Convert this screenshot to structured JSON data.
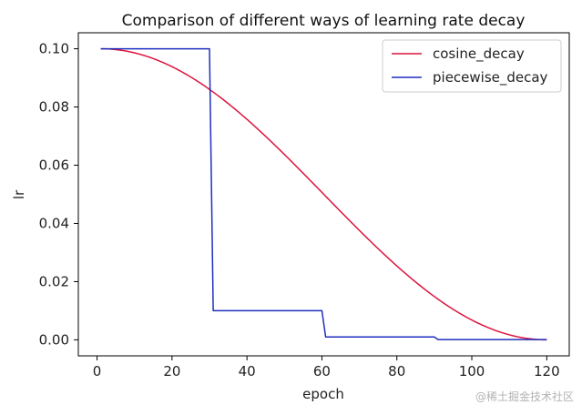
{
  "chart_data": {
    "type": "line",
    "title": "Comparison of different ways of learning rate decay",
    "xlabel": "epoch",
    "ylabel": "lr",
    "xlim": [
      -5,
      126
    ],
    "ylim": [
      -0.0055,
      0.1055
    ],
    "xticks": [
      0,
      20,
      40,
      60,
      80,
      100,
      120
    ],
    "yticks": [
      0.0,
      0.02,
      0.04,
      0.06,
      0.08,
      0.1
    ],
    "ytick_labels": [
      "0.00",
      "0.02",
      "0.04",
      "0.06",
      "0.08",
      "0.10"
    ],
    "grid": false,
    "legend_position": "top-right",
    "series": [
      {
        "name": "cosine_decay",
        "color": "#dc143c",
        "function": "cosine",
        "x_start": 1,
        "x_end": 120,
        "lr_max": 0.1,
        "lr_min": 0.0
      },
      {
        "name": "piecewise_decay",
        "color": "#1f2fbf",
        "function": "steps",
        "points": [
          [
            1,
            0.1
          ],
          [
            30,
            0.1
          ],
          [
            31,
            0.01
          ],
          [
            60,
            0.01
          ],
          [
            61,
            0.001
          ],
          [
            90,
            0.001
          ],
          [
            91,
            0.0001
          ],
          [
            120,
            0.0001
          ]
        ]
      }
    ]
  },
  "watermark": "@稀土掘金技术社区"
}
